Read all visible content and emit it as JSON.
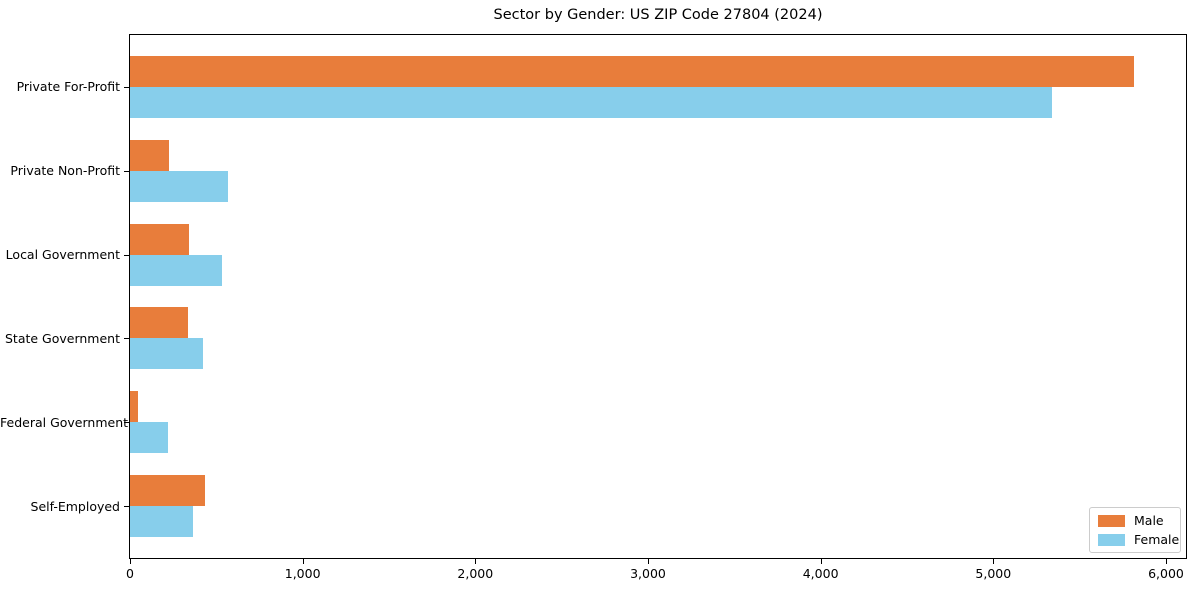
{
  "title": "Sector by Gender: US ZIP Code 27804 (2024)",
  "chart_data": {
    "type": "bar",
    "orientation": "horizontal",
    "title": "Sector by Gender: US ZIP Code 27804 (2024)",
    "categories": [
      "Private For-Profit",
      "Private Non-Profit",
      "Local Government",
      "State Government",
      "Federal Government",
      "Self-Employed"
    ],
    "series": [
      {
        "name": "Male",
        "color": "#E87D3B",
        "values": [
          5815,
          225,
          340,
          335,
          45,
          435
        ]
      },
      {
        "name": "Female",
        "color": "#87CEEB",
        "values": [
          5340,
          570,
          535,
          420,
          220,
          365
        ]
      }
    ],
    "xlabel": "",
    "ylabel": "",
    "xlim": [
      0,
      6116
    ],
    "xticks": [
      0,
      1000,
      2000,
      3000,
      4000,
      5000,
      6000
    ],
    "xtick_labels": [
      "0",
      "1,000",
      "2,000",
      "3,000",
      "4,000",
      "5,000",
      "6,000"
    ],
    "grid": false,
    "legend_position": "lower right",
    "plot_background": "#FFFFFF",
    "axis_color": "#000000",
    "legend_border_color": "#CCCCCC"
  }
}
